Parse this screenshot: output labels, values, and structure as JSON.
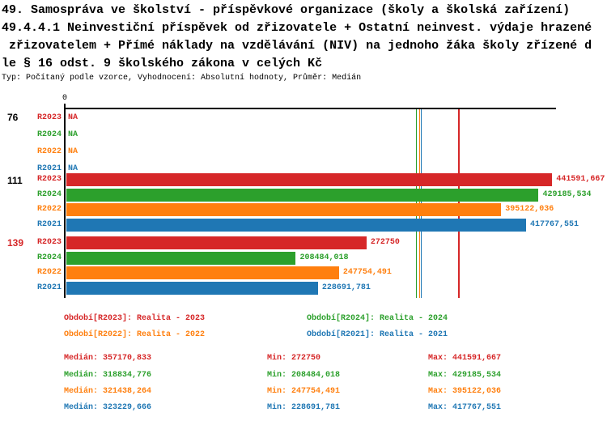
{
  "title_lines": [
    "49. Samospráva ve školství - příspěvkové organizace (školy a školská zařízení)",
    "49.4.4.1 Neinvestiční příspěvek od zřizovatele + Ostatní neinvest. výdaje hrazené",
    " zřizovatelem + Přímé náklady na vzdělávání (NIV) na jednoho žáka školy zřízené d",
    "le § 16 odst. 9 školského zákona v celých Kč"
  ],
  "meta_line": "Typ: Počítaný podle vzorce, Vyhodnocení: Absolutní hodnoty, Průměr: Medián",
  "colors": {
    "R2023": "#d62728",
    "R2024": "#2ca02c",
    "R2022": "#ff7f0e",
    "R2021": "#1f77b4",
    "axis": "#000000",
    "group_label": "#000000",
    "group_label_highlight": "#d62728"
  },
  "chart_data": {
    "type": "bar",
    "orientation": "horizontal",
    "x_origin_label": "0",
    "x_max": 445000,
    "grid": false,
    "series_order": [
      "R2023",
      "R2024",
      "R2022",
      "R2021"
    ],
    "groups": [
      {
        "label": "76",
        "highlight": false,
        "bars": [
          {
            "series": "R2023",
            "value": null,
            "display": "NA"
          },
          {
            "series": "R2024",
            "value": null,
            "display": "NA"
          },
          {
            "series": "R2022",
            "value": null,
            "display": "NA"
          },
          {
            "series": "R2021",
            "value": null,
            "display": "NA"
          }
        ]
      },
      {
        "label": "111",
        "highlight": false,
        "bars": [
          {
            "series": "R2023",
            "value": 441591.667,
            "display": "441591,667"
          },
          {
            "series": "R2024",
            "value": 429185.534,
            "display": "429185,534"
          },
          {
            "series": "R2022",
            "value": 395122.036,
            "display": "395122,036"
          },
          {
            "series": "R2021",
            "value": 417767.551,
            "display": "417767,551"
          }
        ]
      },
      {
        "label": "139",
        "highlight": true,
        "bars": [
          {
            "series": "R2023",
            "value": 272750,
            "display": "272750"
          },
          {
            "series": "R2024",
            "value": 208484.018,
            "display": "208484,018"
          },
          {
            "series": "R2022",
            "value": 247754.491,
            "display": "247754,491"
          },
          {
            "series": "R2021",
            "value": 228691.781,
            "display": "228691,781"
          }
        ]
      }
    ],
    "median_lines": [
      {
        "series": "R2023",
        "value": 357170.833
      },
      {
        "series": "R2024",
        "value": 318834.776
      },
      {
        "series": "R2022",
        "value": 321438.264
      },
      {
        "series": "R2021",
        "value": 323229.666
      }
    ]
  },
  "legend": [
    {
      "series": "R2023",
      "label": "Období[R2023]: Realita - 2023"
    },
    {
      "series": "R2024",
      "label": "Období[R2024]: Realita - 2024"
    },
    {
      "series": "R2022",
      "label": "Období[R2022]: Realita - 2022"
    },
    {
      "series": "R2021",
      "label": "Období[R2021]: Realita - 2021"
    }
  ],
  "stats": [
    {
      "series": "R2023",
      "median": "Medián: 357170,833",
      "min": "Min: 272750",
      "max": "Max: 441591,667"
    },
    {
      "series": "R2024",
      "median": "Medián: 318834,776",
      "min": "Min: 208484,018",
      "max": "Max: 429185,534"
    },
    {
      "series": "R2022",
      "median": "Medián: 321438,264",
      "min": "Min: 247754,491",
      "max": "Max: 395122,036"
    },
    {
      "series": "R2021",
      "median": "Medián: 323229,666",
      "min": "Min: 228691,781",
      "max": "Max: 417767,551"
    }
  ]
}
